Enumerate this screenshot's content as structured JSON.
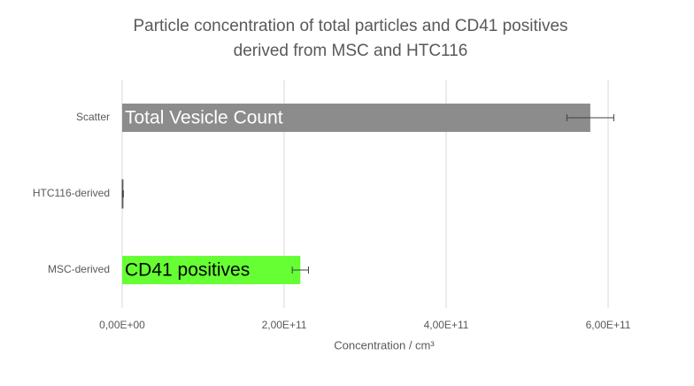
{
  "chart_data": {
    "type": "hbar",
    "title": [
      "Particle concentration of total particles and CD41 positives",
      "derived from MSC and HTC116"
    ],
    "x_label": "Concentration / cm³",
    "categories": [
      "Scatter",
      "HTC116-derived",
      "MSC-derived"
    ],
    "values": [
      578000000000,
      1000000000,
      220000000000
    ],
    "errors": [
      29000000000,
      500000000,
      10000000000
    ],
    "colors": [
      "#8c8c8c",
      "#595959",
      "#66ff33"
    ],
    "bar_labels": [
      "Total Vesicle Count",
      null,
      "CD41 positives"
    ],
    "xlim": [
      0,
      600000000000
    ],
    "xticks": [
      {
        "value": 0,
        "label": "0,00E+00"
      },
      {
        "value": 200000000000,
        "label": "2,00E+11"
      },
      {
        "value": 400000000000,
        "label": "4,00E+11"
      },
      {
        "value": 600000000000,
        "label": "6,00E+11"
      }
    ],
    "grid": true
  }
}
